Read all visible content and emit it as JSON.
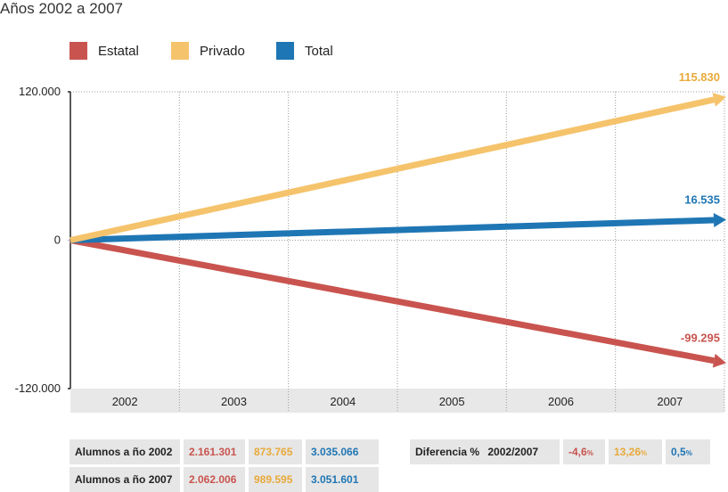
{
  "subtitle": "Años 2002 a 2007",
  "colors": {
    "estatal": "#c9544f",
    "privado": "#f5c36b",
    "total": "#1f76b4",
    "privado_text": "#e8a93a"
  },
  "legend": [
    {
      "name": "Estatal",
      "color": "#c9544f"
    },
    {
      "name": "Privado",
      "color": "#f5c36b"
    },
    {
      "name": "Total",
      "color": "#1f76b4"
    }
  ],
  "chart_data": {
    "type": "line",
    "x": [
      "2002",
      "2003",
      "2004",
      "2005",
      "2006",
      "2007"
    ],
    "ylim": [
      -120000,
      120000
    ],
    "yticks": [
      "120.000",
      "0",
      "-120.000"
    ],
    "series": [
      {
        "name": "Estatal",
        "start": 0,
        "end": -99295,
        "end_label": "-99.295"
      },
      {
        "name": "Privado",
        "start": 0,
        "end": 115830,
        "end_label": "115.830"
      },
      {
        "name": "Total",
        "start": 0,
        "end": 16535,
        "end_label": "16.535"
      }
    ],
    "grid": true
  },
  "table": {
    "row2002": {
      "label_prefix": "Alumnos a ño",
      "year": "2002",
      "estatal": "2.161.301",
      "privado": "873.765",
      "total": "3.035.066"
    },
    "row2007": {
      "label_prefix": "Alumnos a ño",
      "year": "2007",
      "estatal": "2.062.006",
      "privado": "989.595",
      "total": "3.051.601"
    },
    "diff": {
      "label": "Diferencia %",
      "period": "2002/2007",
      "estatal": "-4,6",
      "privado": "13,26",
      "total": "0,5",
      "pct_sign": "%"
    }
  }
}
